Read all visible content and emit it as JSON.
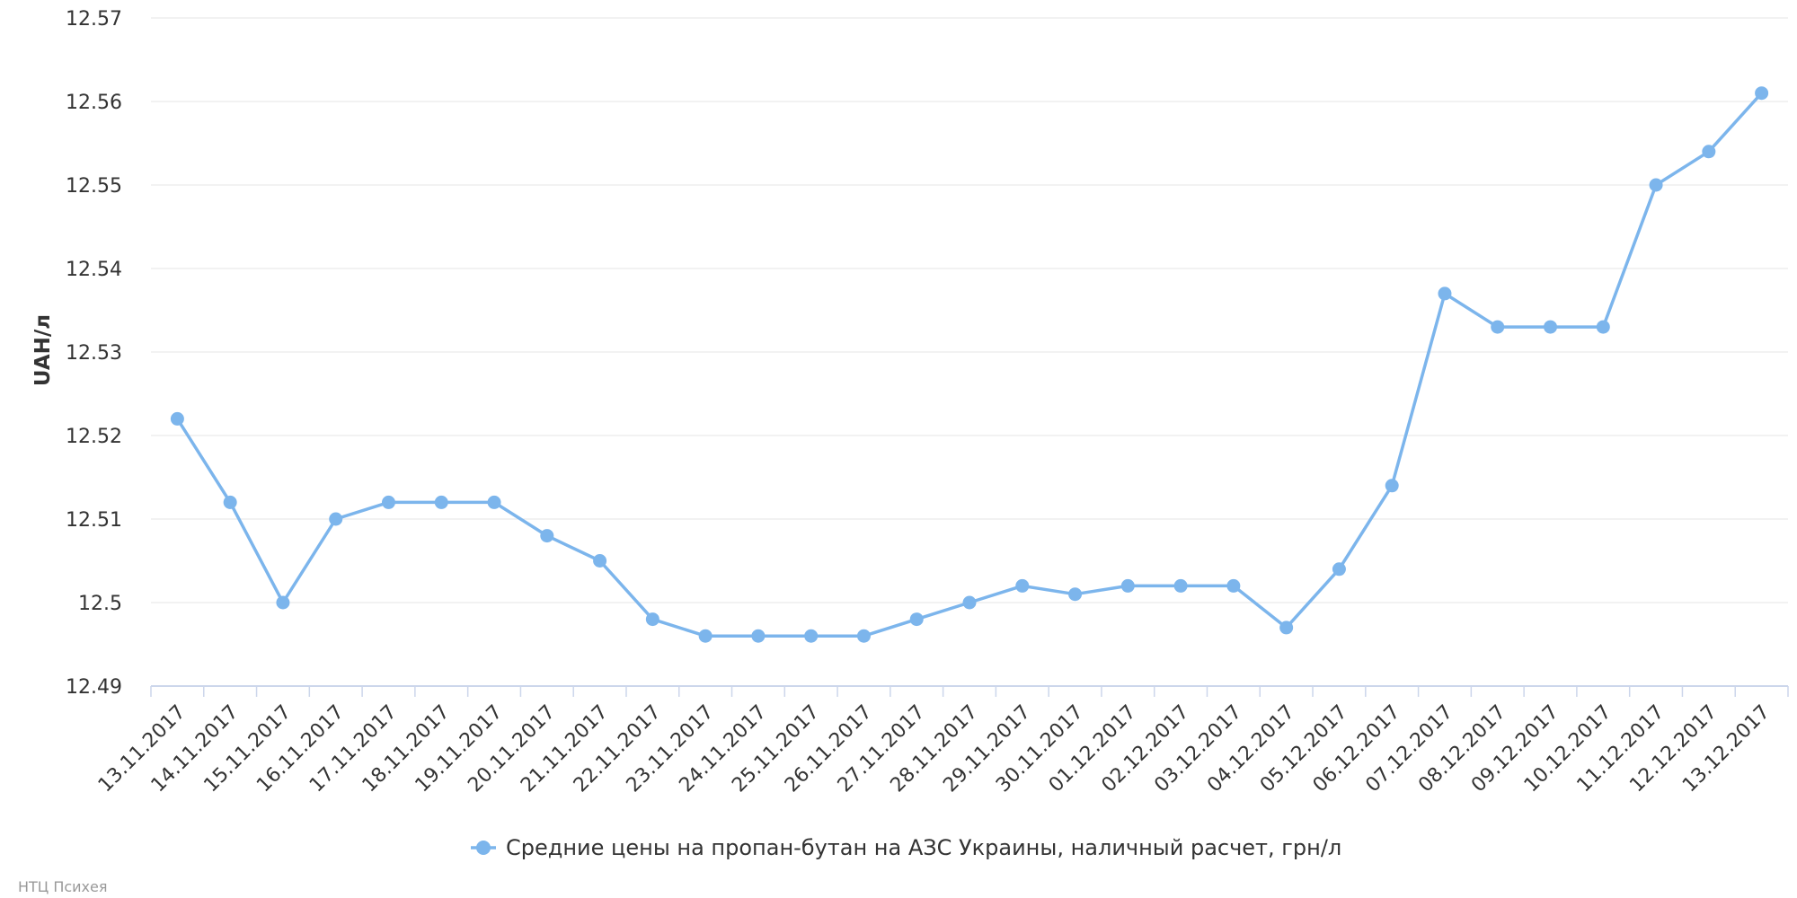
{
  "chart_data": {
    "type": "line",
    "ylabel": "UAH/л",
    "xlabel": "",
    "ylim": [
      12.49,
      12.57
    ],
    "yticks": [
      "12.49",
      "12.5",
      "12.51",
      "12.52",
      "12.53",
      "12.54",
      "12.55",
      "12.56",
      "12.57"
    ],
    "grid": true,
    "legend_position": "bottom-center",
    "categories": [
      "13.11.2017",
      "14.11.2017",
      "15.11.2017",
      "16.11.2017",
      "17.11.2017",
      "18.11.2017",
      "19.11.2017",
      "20.11.2017",
      "21.11.2017",
      "22.11.2017",
      "23.11.2017",
      "24.11.2017",
      "25.11.2017",
      "26.11.2017",
      "27.11.2017",
      "28.11.2017",
      "29.11.2017",
      "30.11.2017",
      "01.12.2017",
      "02.12.2017",
      "03.12.2017",
      "04.12.2017",
      "05.12.2017",
      "06.12.2017",
      "07.12.2017",
      "08.12.2017",
      "09.12.2017",
      "10.12.2017",
      "11.12.2017",
      "12.12.2017",
      "13.12.2017"
    ],
    "series": [
      {
        "name": "Средние цены на пропан-бутан на АЗС Украины, наличный расчет, грн/л",
        "color": "#7cb5ec",
        "values": [
          12.522,
          12.512,
          12.5,
          12.51,
          12.512,
          12.512,
          12.512,
          12.508,
          12.505,
          12.498,
          12.496,
          12.496,
          12.496,
          12.496,
          12.498,
          12.5,
          12.502,
          12.501,
          12.502,
          12.502,
          12.502,
          12.497,
          12.504,
          12.514,
          12.537,
          12.533,
          12.533,
          12.533,
          12.55,
          12.554,
          12.561
        ]
      }
    ]
  },
  "credit": "НТЦ Психея",
  "colors": {
    "grid": "#e6e6e6",
    "axis": "#ccd6eb",
    "text": "#333333",
    "credit": "#999999"
  }
}
